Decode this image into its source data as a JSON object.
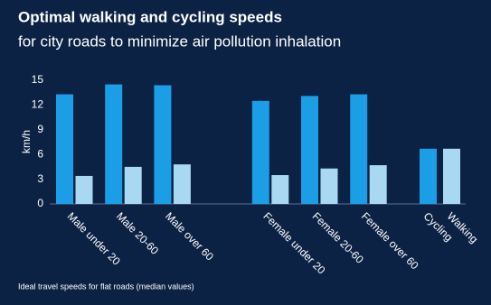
{
  "chart_data": {
    "type": "bar",
    "title": "Optimal walking and cycling speeds",
    "subtitle": "for city roads to minimize air pollution inhalation",
    "y_label": "km/h",
    "note": "Ideal travel speeds for flat roads (median values)",
    "categories": [
      "Male under 20",
      "Male 20-60",
      "Male over 60",
      null,
      "Female under 20",
      "Female 20-60",
      "Female over 60",
      "Cycling",
      "Walking"
    ],
    "series": [
      {
        "color": "#1c9ee6",
        "values": [
          13.3,
          14.5,
          14.4,
          null,
          12.5,
          13.1,
          13.3,
          6.7,
          null
        ]
      },
      {
        "color": "#a9d8f2",
        "values": [
          3.4,
          4.5,
          4.8,
          null,
          3.5,
          4.3,
          4.7,
          null,
          6.7
        ]
      }
    ],
    "ylim": [
      0,
      15
    ],
    "yticks": [
      0,
      3,
      6,
      9,
      12,
      15
    ],
    "grid": false
  }
}
